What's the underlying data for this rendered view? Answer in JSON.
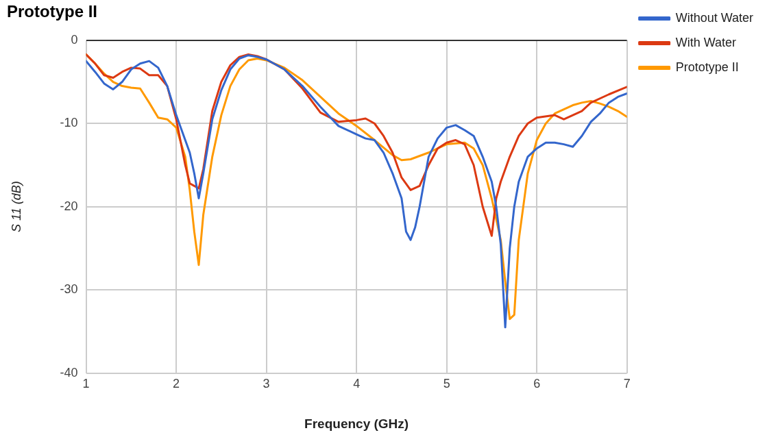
{
  "chart_data": {
    "type": "line",
    "title": "Prototype II",
    "xlabel": "Frequency (GHz)",
    "ylabel": "S 11 (dB)",
    "xlim": [
      1,
      7
    ],
    "xticks": [
      1,
      2,
      3,
      4,
      5,
      6,
      7
    ],
    "ylim": [
      -40,
      0
    ],
    "yticks": [
      -40,
      -30,
      -20,
      -10,
      0
    ],
    "grid": true,
    "legend": "right",
    "marker": "none",
    "series": [
      {
        "name": "Without Water",
        "color": "#3366cc",
        "x": [
          1.0,
          1.1,
          1.2,
          1.3,
          1.4,
          1.5,
          1.6,
          1.7,
          1.8,
          1.9,
          2.0,
          2.1,
          2.15,
          2.2,
          2.25,
          2.3,
          2.4,
          2.5,
          2.6,
          2.7,
          2.8,
          2.9,
          3.0,
          3.2,
          3.4,
          3.6,
          3.8,
          4.0,
          4.1,
          4.2,
          4.3,
          4.4,
          4.5,
          4.55,
          4.6,
          4.65,
          4.7,
          4.8,
          4.9,
          5.0,
          5.1,
          5.2,
          5.3,
          5.4,
          5.5,
          5.55,
          5.6,
          5.65,
          5.7,
          5.75,
          5.8,
          5.9,
          6.0,
          6.1,
          6.2,
          6.3,
          6.4,
          6.5,
          6.6,
          6.7,
          6.8,
          6.9,
          7.0
        ],
        "values": [
          -2.5,
          -3.8,
          -5.2,
          -5.9,
          -5,
          -3.5,
          -2.8,
          -2.5,
          -3.3,
          -5.5,
          -9,
          -12,
          -13.5,
          -16,
          -19,
          -16,
          -9.5,
          -6,
          -3.5,
          -2.2,
          -1.8,
          -2,
          -2.3,
          -3.5,
          -5.5,
          -8,
          -10.3,
          -11.3,
          -11.8,
          -12,
          -13.5,
          -16,
          -19,
          -23,
          -24,
          -22.5,
          -20,
          -14,
          -11.8,
          -10.5,
          -10.2,
          -10.8,
          -11.5,
          -14,
          -17,
          -20,
          -24.5,
          -34.5,
          -25,
          -20,
          -17,
          -14,
          -13,
          -12.3,
          -12.3,
          -12.5,
          -12.8,
          -11.5,
          -9.8,
          -8.8,
          -7.5,
          -6.8,
          -6.4
        ]
      },
      {
        "name": "With Water",
        "color": "#dc3912",
        "x": [
          1.0,
          1.1,
          1.2,
          1.3,
          1.4,
          1.5,
          1.6,
          1.7,
          1.8,
          1.9,
          2.0,
          2.1,
          2.15,
          2.2,
          2.25,
          2.3,
          2.4,
          2.5,
          2.6,
          2.7,
          2.8,
          2.9,
          3.0,
          3.2,
          3.4,
          3.6,
          3.8,
          4.0,
          4.1,
          4.2,
          4.3,
          4.4,
          4.5,
          4.6,
          4.7,
          4.8,
          4.9,
          5.0,
          5.1,
          5.2,
          5.3,
          5.4,
          5.5,
          5.55,
          5.6,
          5.7,
          5.8,
          5.9,
          6.0,
          6.2,
          6.3,
          6.4,
          6.5,
          6.6,
          6.8,
          7.0
        ],
        "values": [
          -1.7,
          -2.8,
          -4.2,
          -4.5,
          -3.8,
          -3.3,
          -3.4,
          -4.2,
          -4.2,
          -5.5,
          -9.5,
          -15,
          -17.2,
          -17.5,
          -17.8,
          -15.5,
          -8.5,
          -5,
          -3,
          -2,
          -1.7,
          -1.9,
          -2.3,
          -3.5,
          -5.8,
          -8.7,
          -9.8,
          -9.6,
          -9.4,
          -10,
          -11.5,
          -13.5,
          -16.5,
          -18,
          -17.5,
          -15,
          -13,
          -12.3,
          -12,
          -12.5,
          -15,
          -20,
          -23.5,
          -19,
          -17,
          -14,
          -11.5,
          -10,
          -9.3,
          -9,
          -9.5,
          -9,
          -8.5,
          -7.5,
          -6.5,
          -5.6
        ]
      },
      {
        "name": "Prototype II",
        "color": "#ff9900",
        "x": [
          1.0,
          1.1,
          1.2,
          1.3,
          1.4,
          1.5,
          1.6,
          1.7,
          1.8,
          1.9,
          2.0,
          2.1,
          2.15,
          2.2,
          2.25,
          2.3,
          2.4,
          2.5,
          2.6,
          2.7,
          2.8,
          2.9,
          3.0,
          3.2,
          3.4,
          3.6,
          3.8,
          4.0,
          4.2,
          4.4,
          4.5,
          4.6,
          4.8,
          5.0,
          5.2,
          5.3,
          5.4,
          5.5,
          5.6,
          5.65,
          5.7,
          5.75,
          5.8,
          5.9,
          6.0,
          6.1,
          6.2,
          6.4,
          6.5,
          6.6,
          6.7,
          6.8,
          6.9,
          7.0
        ],
        "values": [
          -1.7,
          -2.8,
          -4,
          -5,
          -5.5,
          -5.7,
          -5.8,
          -7.5,
          -9.3,
          -9.5,
          -10.5,
          -14,
          -18,
          -23,
          -27,
          -21,
          -14,
          -9,
          -5.5,
          -3.5,
          -2.4,
          -2.2,
          -2.4,
          -3.3,
          -4.8,
          -6.8,
          -8.8,
          -10.3,
          -12,
          -13.8,
          -14.4,
          -14.3,
          -13.5,
          -12.5,
          -12.3,
          -13,
          -15,
          -19,
          -24,
          -29,
          -33.5,
          -33,
          -24,
          -16,
          -12,
          -10,
          -8.8,
          -7.8,
          -7.5,
          -7.3,
          -7.6,
          -8,
          -8.5,
          -9.2
        ]
      }
    ]
  }
}
